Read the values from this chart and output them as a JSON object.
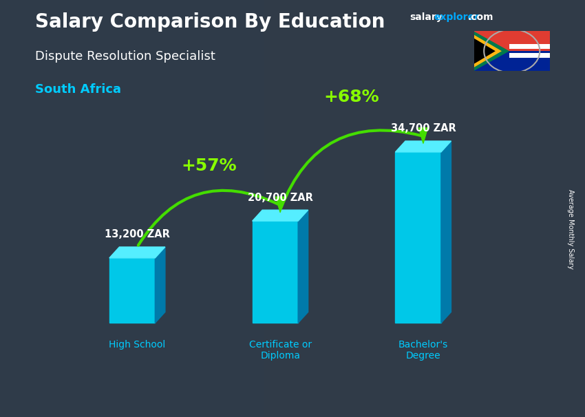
{
  "title_main": "Salary Comparison By Education",
  "subtitle1": "Dispute Resolution Specialist",
  "subtitle2": "South Africa",
  "ylabel_rotated": "Average Monthly Salary",
  "categories": [
    "High School",
    "Certificate or\nDiploma",
    "Bachelor's\nDegree"
  ],
  "values": [
    13200,
    20700,
    34700
  ],
  "value_labels": [
    "13,200 ZAR",
    "20,700 ZAR",
    "34,700 ZAR"
  ],
  "pct_labels": [
    "+57%",
    "+68%"
  ],
  "bar_face_color": "#00c8e8",
  "bar_top_color": "#55eeff",
  "bar_side_color": "#007aaa",
  "bar_side_dark": "#005577",
  "bg_color": "#3a4a5a",
  "title_color": "#ffffff",
  "subtitle1_color": "#ffffff",
  "subtitle2_color": "#00ccff",
  "value_label_color": "#ffffff",
  "pct_color": "#88ff00",
  "arrow_color": "#44dd00",
  "xlabel_color": "#00ccff",
  "salary_text_color": "#ffffff",
  "explorer_text_color": "#00aaff",
  "com_text_color": "#ffffff",
  "figsize": [
    8.5,
    6.06
  ],
  "dpi": 100
}
